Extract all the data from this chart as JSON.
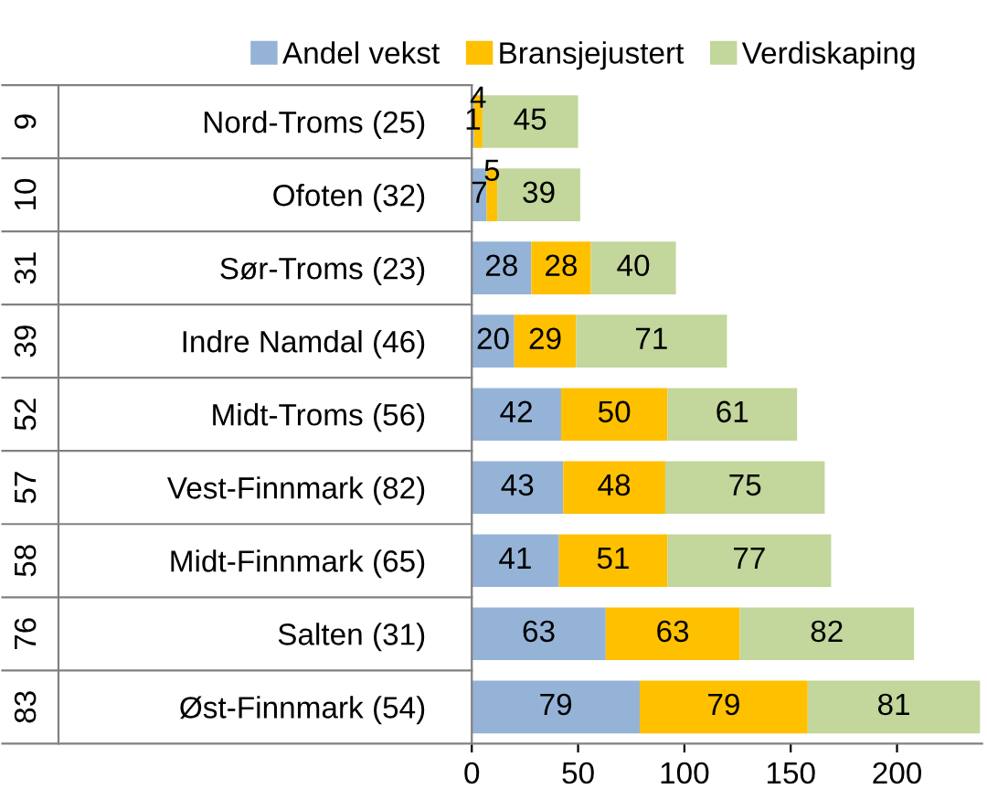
{
  "chart_data": {
    "type": "bar",
    "orientation": "horizontal",
    "stacked": true,
    "categories": [
      "Nord-Troms (25)",
      "Ofoten (32)",
      "Sør-Troms (23)",
      "Indre Namdal (46)",
      "Midt-Troms (56)",
      "Vest-Finnmark (82)",
      "Midt-Finnmark (65)",
      "Salten (31)",
      "Øst-Finnmark (54)"
    ],
    "series": [
      {
        "name": "Andel vekst",
        "color": "#95b3d7",
        "values": [
          1,
          7,
          28,
          20,
          42,
          43,
          41,
          63,
          79
        ]
      },
      {
        "name": "Bransjejustert",
        "color": "#ffc000",
        "values": [
          4,
          5,
          28,
          29,
          50,
          48,
          51,
          63,
          79
        ]
      },
      {
        "name": "Verdiskaping",
        "color": "#c3d69b",
        "values": [
          45,
          39,
          40,
          71,
          61,
          75,
          77,
          82,
          81
        ]
      }
    ],
    "annotations": [
      "9",
      "10",
      "31",
      "39",
      "52",
      "57",
      "58",
      "76",
      "83"
    ],
    "xlim": [
      0,
      240
    ],
    "xticks": [
      0,
      50,
      100,
      150,
      200
    ],
    "data_labels": true,
    "legend": "top",
    "grid": false
  }
}
